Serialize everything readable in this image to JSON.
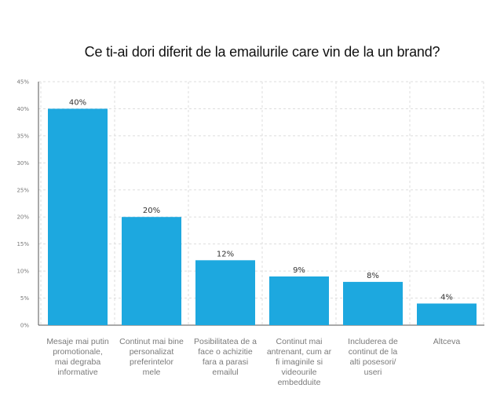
{
  "chart_data": {
    "type": "bar",
    "title": "Ce ti-ai dori diferit de la emailurile care vin de la un brand?",
    "categories": [
      [
        "Mesaje mai putin",
        "promotionale,",
        "mai degraba",
        "informative"
      ],
      [
        "Continut mai bine",
        "personalizat",
        "preferintelor",
        "mele"
      ],
      [
        "Posibilitatea de a",
        "face o achizitie",
        "fara a parasi",
        "emailul"
      ],
      [
        "Continut mai",
        "antrenant, cum ar",
        "fi imaginile si",
        "videourile",
        "embedduite"
      ],
      [
        "Includerea de",
        "continut de la",
        "alti posesori/",
        "useri"
      ],
      [
        "Altceva"
      ]
    ],
    "values": [
      40,
      20,
      12,
      9,
      8,
      4
    ],
    "value_labels": [
      "40%",
      "20%",
      "12%",
      "9%",
      "8%",
      "4%"
    ],
    "ylim": [
      0,
      45
    ],
    "yticks": [
      "0%",
      "5%",
      "10%",
      "15%",
      "20%",
      "25%",
      "30%",
      "35%",
      "40%",
      "45%"
    ],
    "grid": true,
    "bar_color": "#1da8df",
    "grid_color": "#dddddd"
  }
}
